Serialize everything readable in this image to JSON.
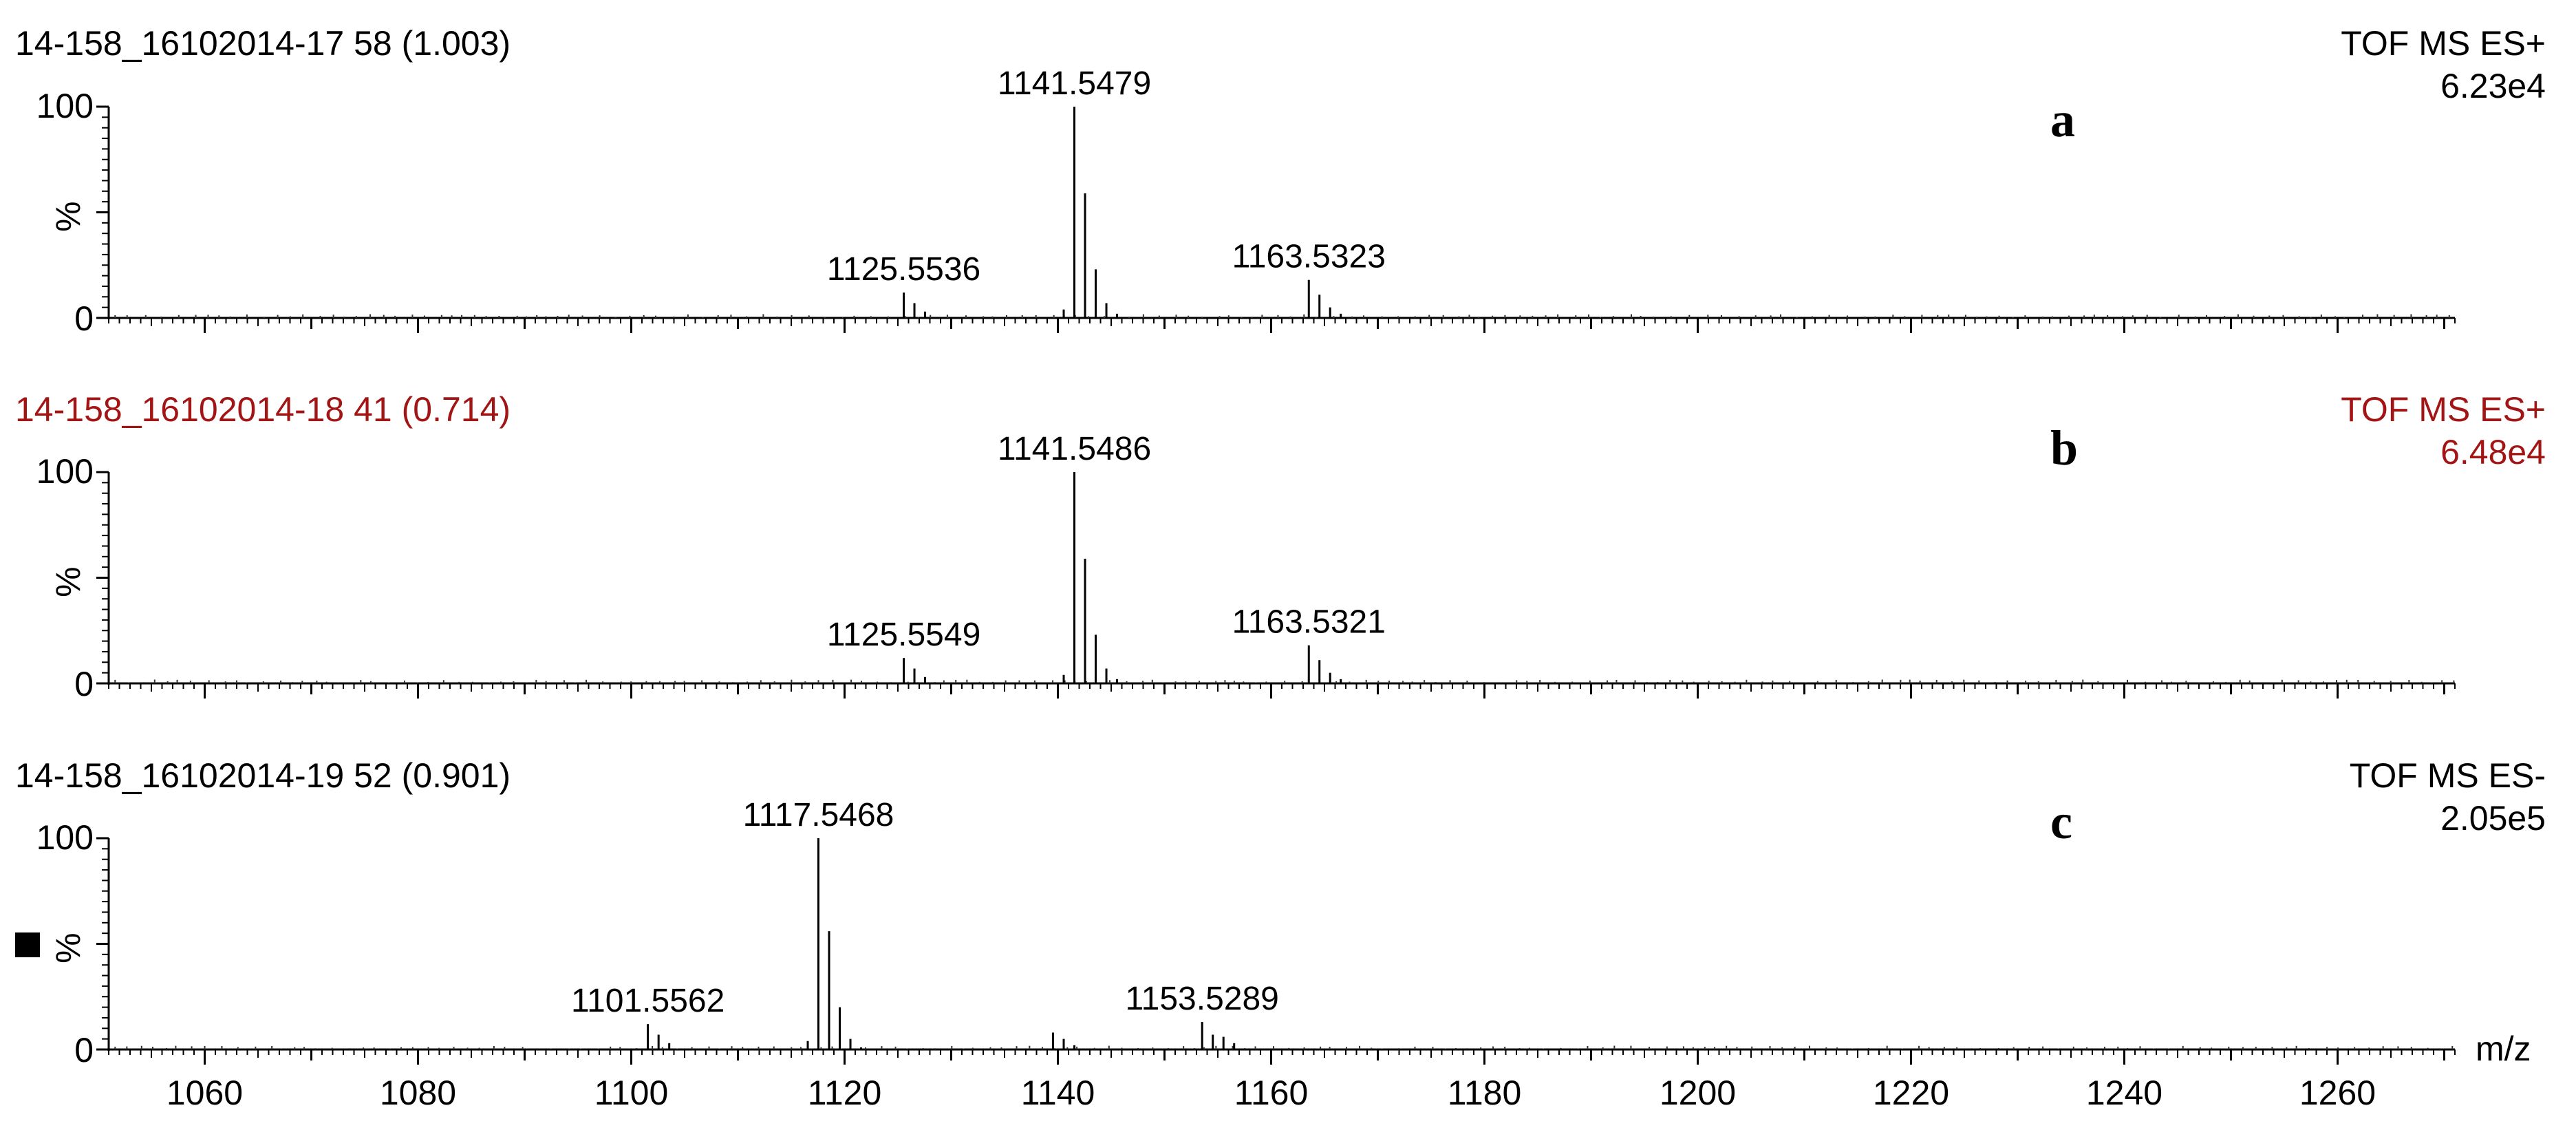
{
  "chart_data": [
    {
      "type": "bar",
      "panel_letter": "a",
      "header_left": "14-158_16102014-17 58 (1.003)",
      "header_right": "TOF MS ES+",
      "intensity": "6.23e4",
      "header_color": "#000000",
      "ylabel": "%",
      "ylim": [
        0,
        100
      ],
      "yticks": [
        "0",
        "100"
      ],
      "xlim": [
        1051,
        1271
      ],
      "peaks": [
        {
          "mz": 1125.5536,
          "rel": 12,
          "label": "1125.5536"
        },
        {
          "mz": 1126.55,
          "rel": 7
        },
        {
          "mz": 1127.55,
          "rel": 3
        },
        {
          "mz": 1140.55,
          "rel": 4
        },
        {
          "mz": 1141.5479,
          "rel": 100,
          "label": "1141.5479"
        },
        {
          "mz": 1142.55,
          "rel": 59
        },
        {
          "mz": 1143.55,
          "rel": 23
        },
        {
          "mz": 1144.55,
          "rel": 7
        },
        {
          "mz": 1145.55,
          "rel": 2
        },
        {
          "mz": 1163.5323,
          "rel": 18,
          "label": "1163.5323"
        },
        {
          "mz": 1164.53,
          "rel": 11
        },
        {
          "mz": 1165.53,
          "rel": 5
        },
        {
          "mz": 1166.53,
          "rel": 2
        }
      ]
    },
    {
      "type": "bar",
      "panel_letter": "b",
      "header_left": "14-158_16102014-18 41 (0.714)",
      "header_right": "TOF MS ES+",
      "intensity": "6.48e4",
      "header_color": "#a31515",
      "ylabel": "%",
      "ylim": [
        0,
        100
      ],
      "yticks": [
        "0",
        "100"
      ],
      "xlim": [
        1051,
        1271
      ],
      "peaks": [
        {
          "mz": 1125.5549,
          "rel": 12,
          "label": "1125.5549"
        },
        {
          "mz": 1126.55,
          "rel": 7
        },
        {
          "mz": 1127.55,
          "rel": 3
        },
        {
          "mz": 1140.55,
          "rel": 4
        },
        {
          "mz": 1141.5486,
          "rel": 100,
          "label": "1141.5486"
        },
        {
          "mz": 1142.55,
          "rel": 59
        },
        {
          "mz": 1143.55,
          "rel": 23
        },
        {
          "mz": 1144.55,
          "rel": 7
        },
        {
          "mz": 1145.55,
          "rel": 2
        },
        {
          "mz": 1163.5321,
          "rel": 18,
          "label": "1163.5321"
        },
        {
          "mz": 1164.53,
          "rel": 11
        },
        {
          "mz": 1165.53,
          "rel": 5
        },
        {
          "mz": 1166.53,
          "rel": 2
        }
      ]
    },
    {
      "type": "bar",
      "panel_letter": "c",
      "header_left": "14-158_16102014-19 52 (0.901)",
      "header_right": "TOF MS ES-",
      "intensity": "2.05e5",
      "header_color": "#000000",
      "ylabel": "%",
      "ylim": [
        0,
        100
      ],
      "yticks": [
        "0",
        "100"
      ],
      "xlim": [
        1051,
        1271
      ],
      "xlabel": "m/z",
      "xticks": [
        1060,
        1080,
        1100,
        1120,
        1140,
        1160,
        1180,
        1200,
        1220,
        1240,
        1260
      ],
      "peaks": [
        {
          "mz": 1101.5562,
          "rel": 12,
          "label": "1101.5562"
        },
        {
          "mz": 1102.56,
          "rel": 7
        },
        {
          "mz": 1103.56,
          "rel": 3
        },
        {
          "mz": 1116.55,
          "rel": 4
        },
        {
          "mz": 1117.5468,
          "rel": 100,
          "label": "1117.5468"
        },
        {
          "mz": 1118.55,
          "rel": 56
        },
        {
          "mz": 1119.55,
          "rel": 20
        },
        {
          "mz": 1120.55,
          "rel": 5
        },
        {
          "mz": 1121.55,
          "rel": 1
        },
        {
          "mz": 1139.55,
          "rel": 8
        },
        {
          "mz": 1140.55,
          "rel": 5
        },
        {
          "mz": 1141.55,
          "rel": 2
        },
        {
          "mz": 1153.5289,
          "rel": 13,
          "label": "1153.5289"
        },
        {
          "mz": 1154.53,
          "rel": 7
        },
        {
          "mz": 1155.53,
          "rel": 6
        },
        {
          "mz": 1156.53,
          "rel": 3
        }
      ]
    }
  ],
  "legend_marker": {
    "color": "#000000"
  }
}
